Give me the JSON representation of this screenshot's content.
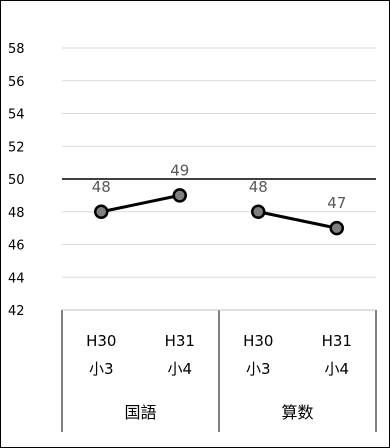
{
  "chart_data": {
    "type": "line",
    "title": "",
    "xlabel": "",
    "ylabel": "",
    "ylim": [
      42,
      58
    ],
    "yticks": [
      "42",
      "44",
      "46",
      "48",
      "50",
      "52",
      "54",
      "56",
      "58"
    ],
    "reference_line": 50,
    "grid": true,
    "groups": [
      {
        "name": "国語",
        "points": [
          {
            "year": "H30",
            "grade": "小3",
            "value": 48,
            "label": "48"
          },
          {
            "year": "H31",
            "grade": "小4",
            "value": 49,
            "label": "49"
          }
        ]
      },
      {
        "name": "算数",
        "points": [
          {
            "year": "H30",
            "grade": "小3",
            "value": 48,
            "label": "48"
          },
          {
            "year": "H31",
            "grade": "小4",
            "value": 47,
            "label": "47"
          }
        ]
      }
    ],
    "colors": {
      "line": "#000000",
      "marker_fill": "#7f7f7f",
      "grid": "#d9d9d9",
      "data_label": "#595959"
    }
  }
}
